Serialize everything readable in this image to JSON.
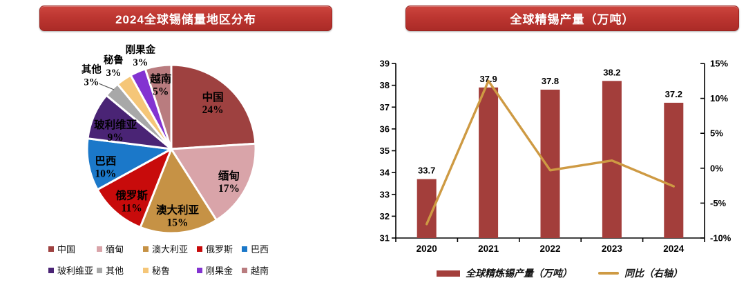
{
  "theme": {
    "banner_bg": "#BD3631",
    "banner_text_color": "#FFFFFF",
    "axis_color": "#000000",
    "label_color": "#000000",
    "background": "#FFFFFF"
  },
  "left_panel": {
    "title": "2024全球锡储量地区分布"
  },
  "right_panel": {
    "title": "全球精锡产量（万吨）"
  },
  "chart_data": [
    {
      "type": "pie",
      "title": "2024全球锡储量地区分布",
      "unit": "percent",
      "start_angle": "12-oclock-clockwise",
      "slices": [
        {
          "label": "中国",
          "value": 24,
          "pct_label": "24%",
          "color": "#9E4140",
          "label_outside": false
        },
        {
          "label": "缅甸",
          "value": 17,
          "pct_label": "17%",
          "color": "#D9A4A9",
          "label_outside": false
        },
        {
          "label": "澳大利亚",
          "value": 15,
          "pct_label": "15%",
          "color": "#C69245",
          "label_outside": false
        },
        {
          "label": "俄罗斯",
          "value": 11,
          "pct_label": "11%",
          "color": "#C80B0B",
          "label_outside": false
        },
        {
          "label": "巴西",
          "value": 10,
          "pct_label": "10%",
          "color": "#1B78C9",
          "label_outside": false
        },
        {
          "label": "玻利维亚",
          "value": 9,
          "pct_label": "9%",
          "color": "#4A2475",
          "label_outside": false
        },
        {
          "label": "其他",
          "value": 3,
          "pct_label": "3%",
          "color": "#A8A8A8",
          "label_outside": true
        },
        {
          "label": "秘鲁",
          "value": 3,
          "pct_label": "3%",
          "color": "#F5C678",
          "label_outside": true
        },
        {
          "label": "刚果金",
          "value": 3,
          "pct_label": "3%",
          "color": "#8333D1",
          "label_outside": true
        },
        {
          "label": "越南",
          "value": 5,
          "pct_label": "5%",
          "color": "#B97C7F",
          "label_outside": false
        }
      ],
      "legend_position": "bottom",
      "legend_labels": [
        "中国",
        "缅甸",
        "澳大利亚",
        "俄罗斯",
        "巴西",
        "玻利维亚",
        "其他",
        "秘鲁",
        "刚果金",
        "越南"
      ]
    },
    {
      "type": "bar+line",
      "title": "全球精锡产量（万吨）",
      "categories": [
        "2020",
        "2021",
        "2022",
        "2023",
        "2024"
      ],
      "series": [
        {
          "name": "全球精炼锡产量（万吨）",
          "type": "bar",
          "axis": "left",
          "color": "#A33E3B",
          "values": [
            33.7,
            37.9,
            37.8,
            38.2,
            37.2
          ],
          "data_labels": [
            "33.7",
            "37.9",
            "37.8",
            "38.2",
            "37.2"
          ]
        },
        {
          "name": "同比（右轴）",
          "type": "line",
          "axis": "right",
          "color": "#CE9A43",
          "values": [
            -8.0,
            12.5,
            -0.3,
            1.1,
            -2.6
          ],
          "unit": "%"
        }
      ],
      "left_axis": {
        "min": 31,
        "max": 39,
        "step": 1,
        "tick_labels": [
          "31",
          "32",
          "33",
          "34",
          "35",
          "36",
          "37",
          "38",
          "39"
        ]
      },
      "right_axis": {
        "min": -10,
        "max": 15,
        "step": 5,
        "tick_labels": [
          "-10%",
          "-5%",
          "0%",
          "5%",
          "10%",
          "15%"
        ]
      },
      "grid": false,
      "legend_position": "bottom"
    }
  ]
}
